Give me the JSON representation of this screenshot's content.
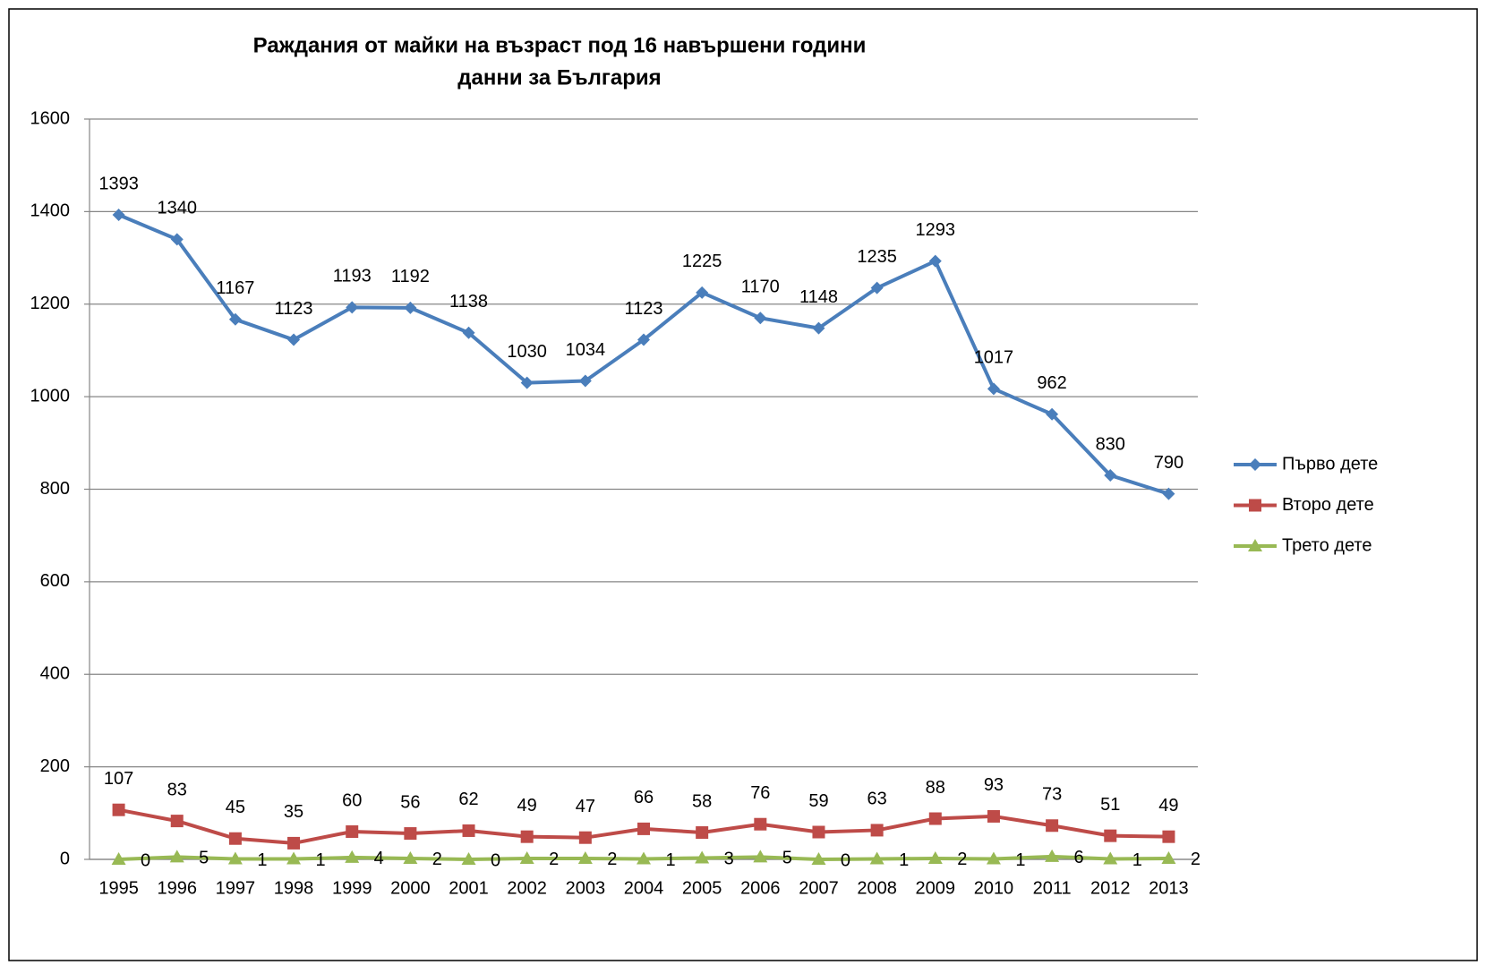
{
  "chart_data": {
    "type": "line",
    "title": "Раждания от майки на възраст под 16 навършени години",
    "subtitle": "данни за България",
    "categories": [
      "1995",
      "1996",
      "1997",
      "1998",
      "1999",
      "2000",
      "2001",
      "2002",
      "2003",
      "2004",
      "2005",
      "2006",
      "2007",
      "2008",
      "2009",
      "2010",
      "2011",
      "2012",
      "2013"
    ],
    "series": [
      {
        "name": "Първо дете",
        "color": "#4a7ebb",
        "marker": "diamond",
        "label_position": "above",
        "values": [
          1393,
          1340,
          1167,
          1123,
          1193,
          1192,
          1138,
          1030,
          1034,
          1123,
          1225,
          1170,
          1148,
          1235,
          1293,
          1017,
          962,
          830,
          790
        ]
      },
      {
        "name": "Второ дете",
        "color": "#be4b48",
        "marker": "square",
        "label_position": "above",
        "values": [
          107,
          83,
          45,
          35,
          60,
          56,
          62,
          49,
          47,
          66,
          58,
          76,
          59,
          63,
          88,
          93,
          73,
          51,
          49
        ]
      },
      {
        "name": "Трето дете",
        "color": "#98b954",
        "marker": "triangle",
        "label_position": "right",
        "values": [
          0,
          5,
          1,
          1,
          4,
          2,
          0,
          2,
          2,
          1,
          3,
          5,
          0,
          1,
          2,
          1,
          6,
          1,
          2
        ]
      }
    ],
    "ylim": [
      0,
      1600
    ],
    "yticks": [
      0,
      200,
      400,
      600,
      800,
      1000,
      1200,
      1400,
      1600
    ],
    "grid": true,
    "legend": "right"
  }
}
